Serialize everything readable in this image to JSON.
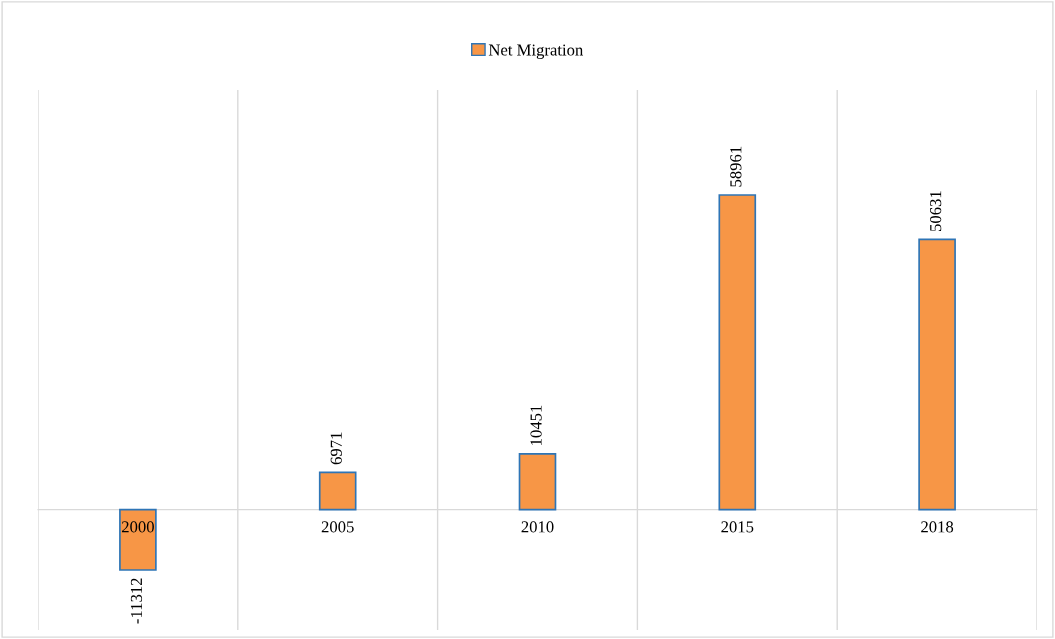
{
  "chart_data": {
    "type": "bar",
    "categories": [
      "2000",
      "2005",
      "2010",
      "2015",
      "2018"
    ],
    "series": [
      {
        "name": "Net Migration",
        "color": "#f79646",
        "values": [
          -11312,
          6971,
          10451,
          58961,
          50631
        ]
      }
    ],
    "data_labels": true,
    "grid": "x",
    "legend": "top"
  }
}
